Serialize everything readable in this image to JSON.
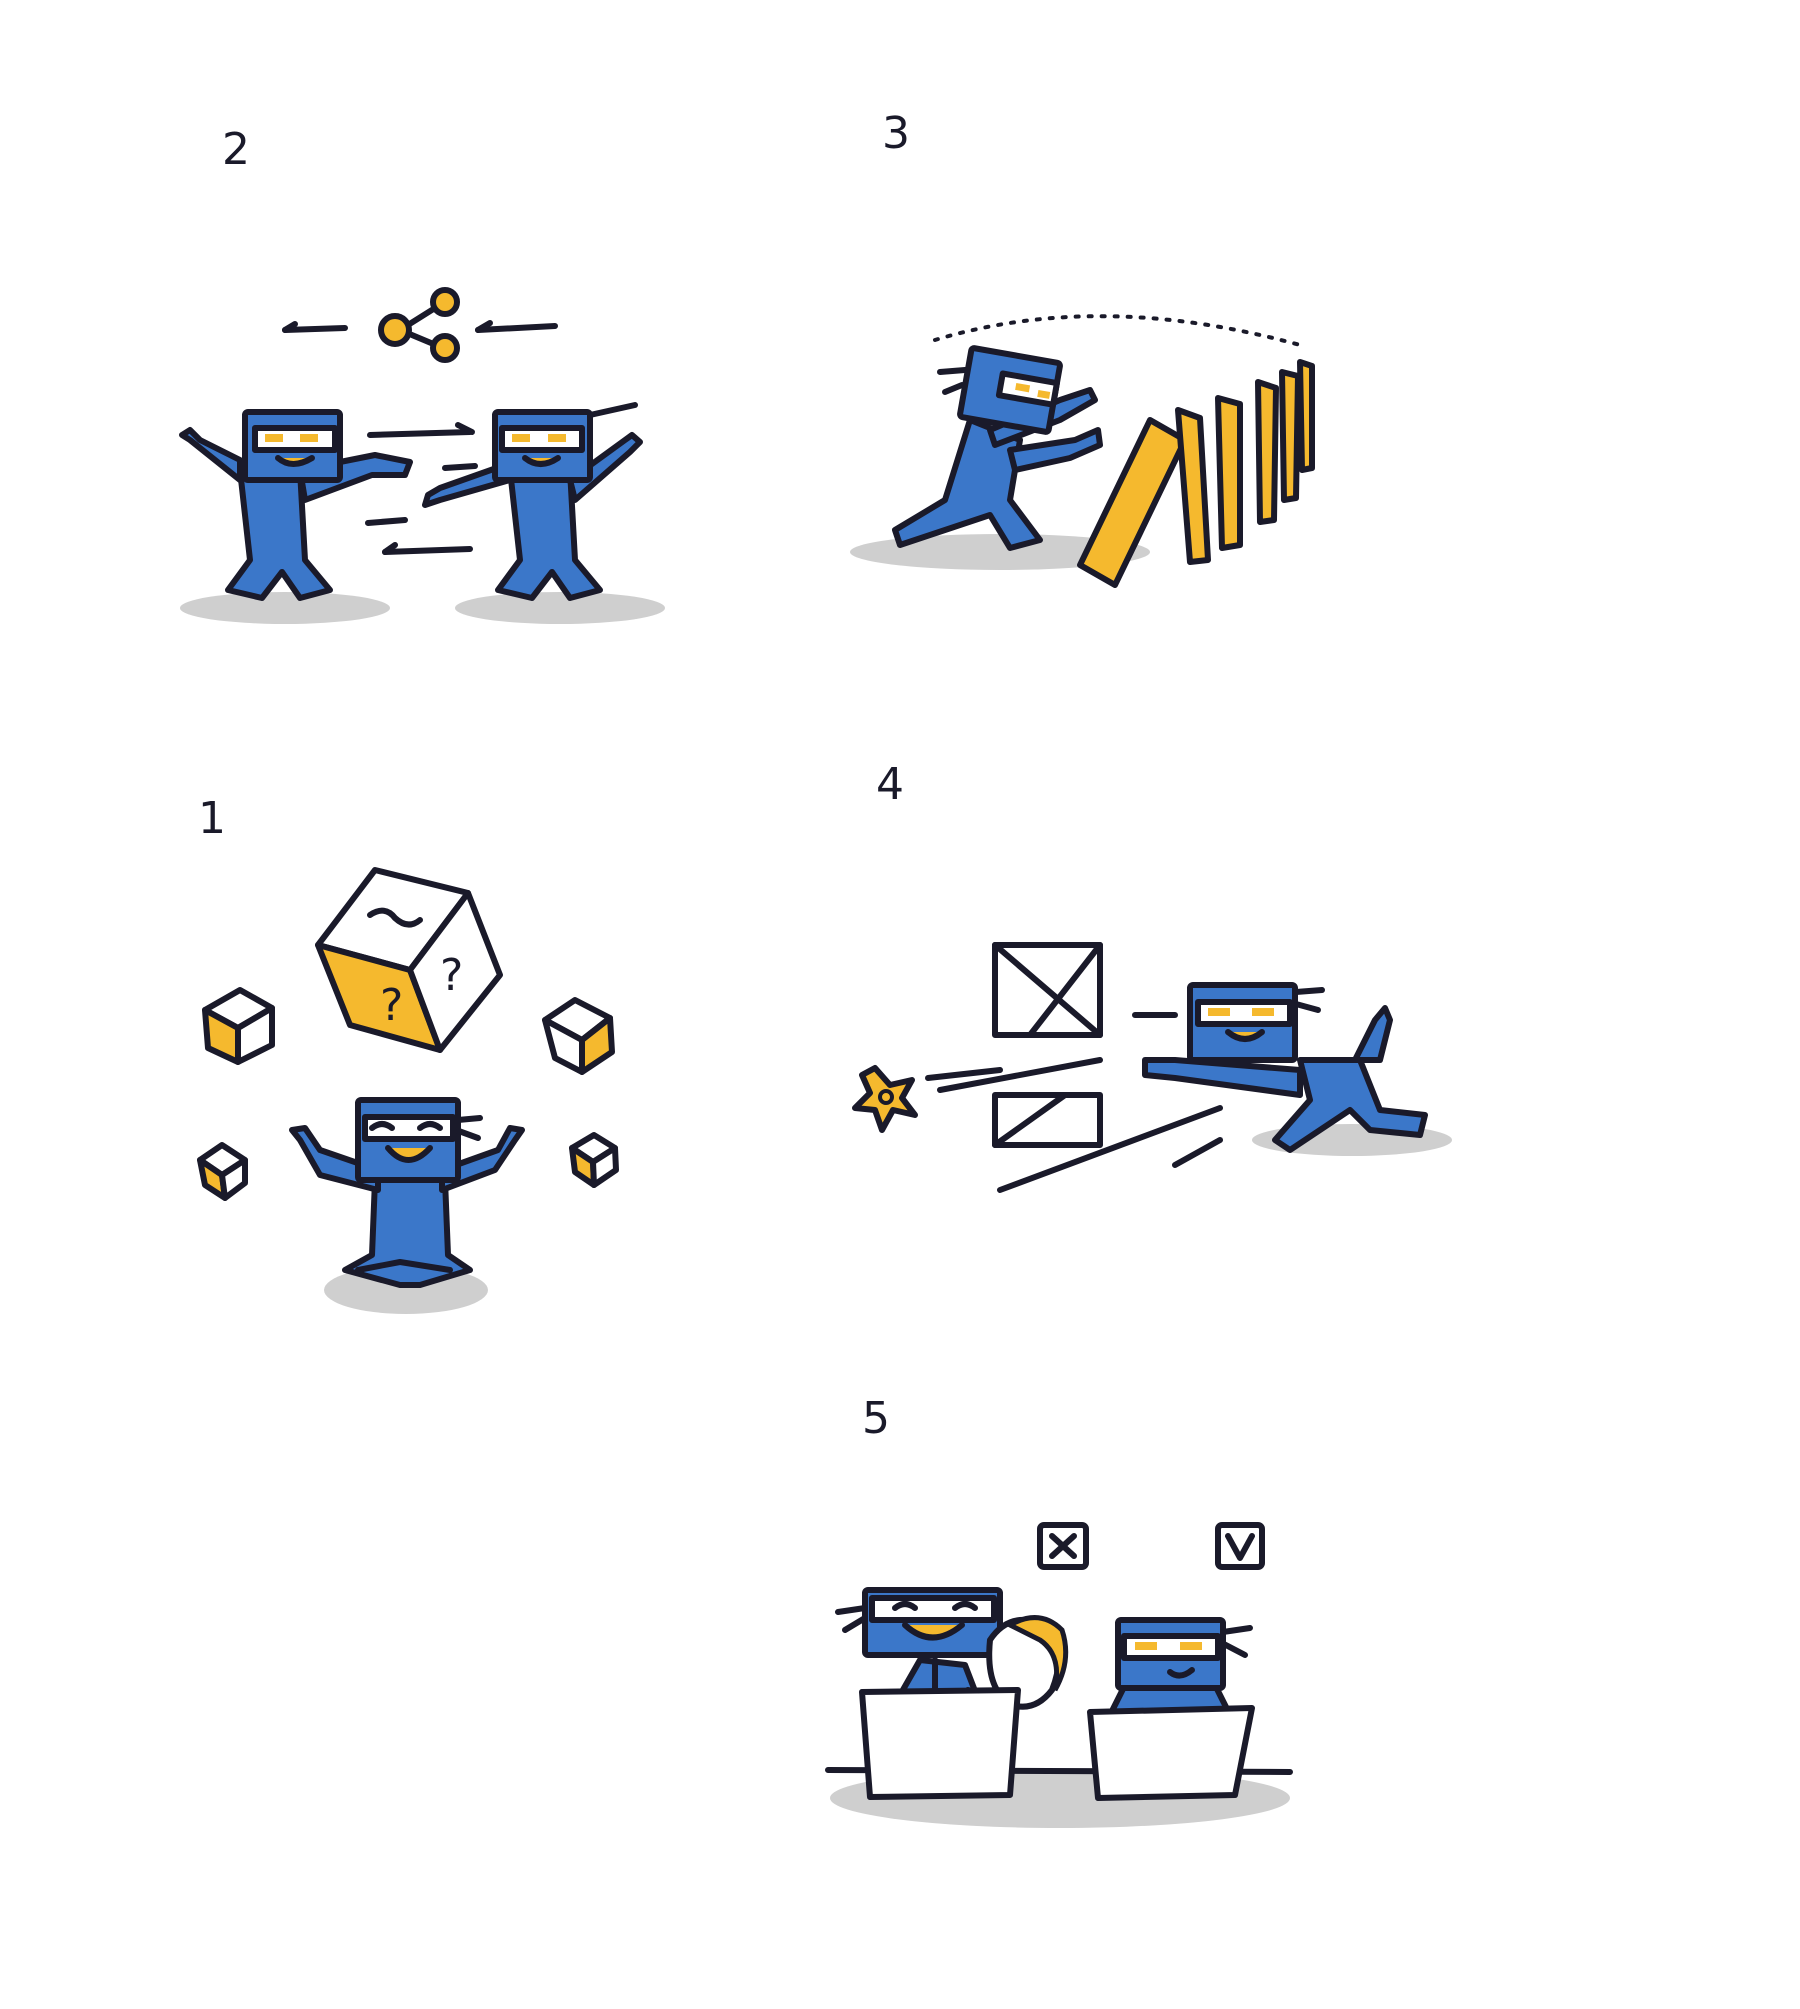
{
  "panels": [
    {
      "label": "2"
    },
    {
      "label": "3"
    },
    {
      "label": "1"
    },
    {
      "label": "4"
    },
    {
      "label": "5"
    }
  ],
  "colors": {
    "ninja_blue": "#3b77c9",
    "accent_yellow": "#f5b92e",
    "ink": "#1a1a2a",
    "shadow": "#cfcfcf"
  },
  "icons": [
    "share-icon",
    "cross-box-icon",
    "check-box-icon",
    "shuriken-icon",
    "question-cube-icon"
  ]
}
